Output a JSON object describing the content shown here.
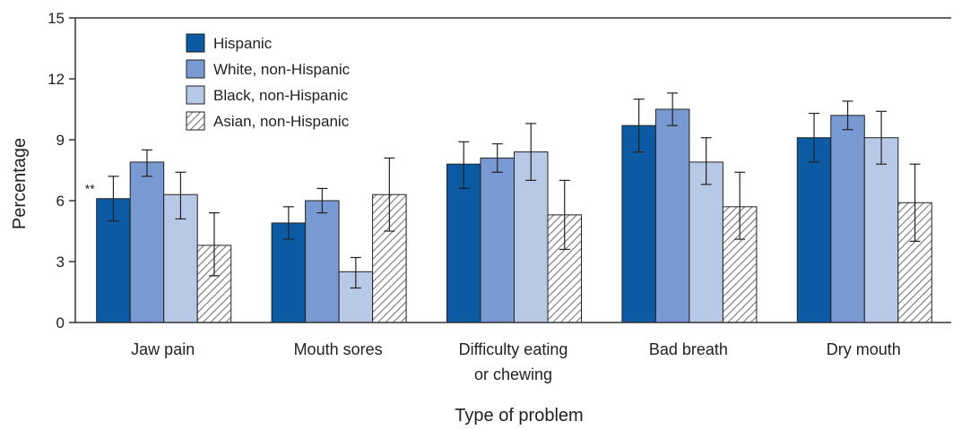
{
  "chart_data": {
    "type": "bar",
    "title": "",
    "xlabel": "Type of problem",
    "ylabel": "Percentage",
    "ylim": [
      0,
      15
    ],
    "yticks": [
      "0",
      "3",
      "6",
      "9",
      "12",
      "15"
    ],
    "categories": [
      [
        "Jaw pain"
      ],
      [
        "Mouth sores"
      ],
      [
        "Difficulty eating",
        "or chewing"
      ],
      [
        "Bad breath"
      ],
      [
        "Dry mouth"
      ]
    ],
    "series": [
      {
        "name": "Hispanic",
        "color": "#0b5aa3",
        "pattern": "solid",
        "values": [
          6.1,
          4.9,
          7.8,
          9.7,
          9.1
        ],
        "ci_low": [
          5.0,
          4.1,
          6.6,
          8.4,
          7.9
        ],
        "ci_high": [
          7.2,
          5.7,
          8.9,
          11.0,
          10.3
        ]
      },
      {
        "name": "White, non-Hispanic",
        "color": "#7899d2",
        "pattern": "solid",
        "values": [
          7.9,
          6.0,
          8.1,
          10.5,
          10.2
        ],
        "ci_low": [
          7.2,
          5.4,
          7.4,
          9.7,
          9.5
        ],
        "ci_high": [
          8.5,
          6.6,
          8.8,
          11.3,
          10.9
        ]
      },
      {
        "name": "Black, non-Hispanic",
        "color": "#b8c9e8",
        "pattern": "solid",
        "values": [
          6.3,
          2.5,
          8.4,
          7.9,
          9.1
        ],
        "ci_low": [
          5.1,
          1.7,
          7.0,
          6.8,
          7.8
        ],
        "ci_high": [
          7.4,
          3.2,
          9.8,
          9.1,
          10.4
        ]
      },
      {
        "name": "Asian, non-Hispanic",
        "color": "#ffffff",
        "pattern": "hatch",
        "values": [
          3.8,
          6.3,
          5.3,
          5.7,
          5.9
        ],
        "ci_low": [
          2.3,
          4.5,
          3.6,
          4.1,
          4.0
        ],
        "ci_high": [
          5.4,
          8.1,
          7.0,
          7.4,
          7.8
        ]
      }
    ],
    "annotations": [
      {
        "text": "**",
        "category_index": 0,
        "series_index": 0
      }
    ],
    "legend": {
      "placement": "top-left"
    }
  }
}
